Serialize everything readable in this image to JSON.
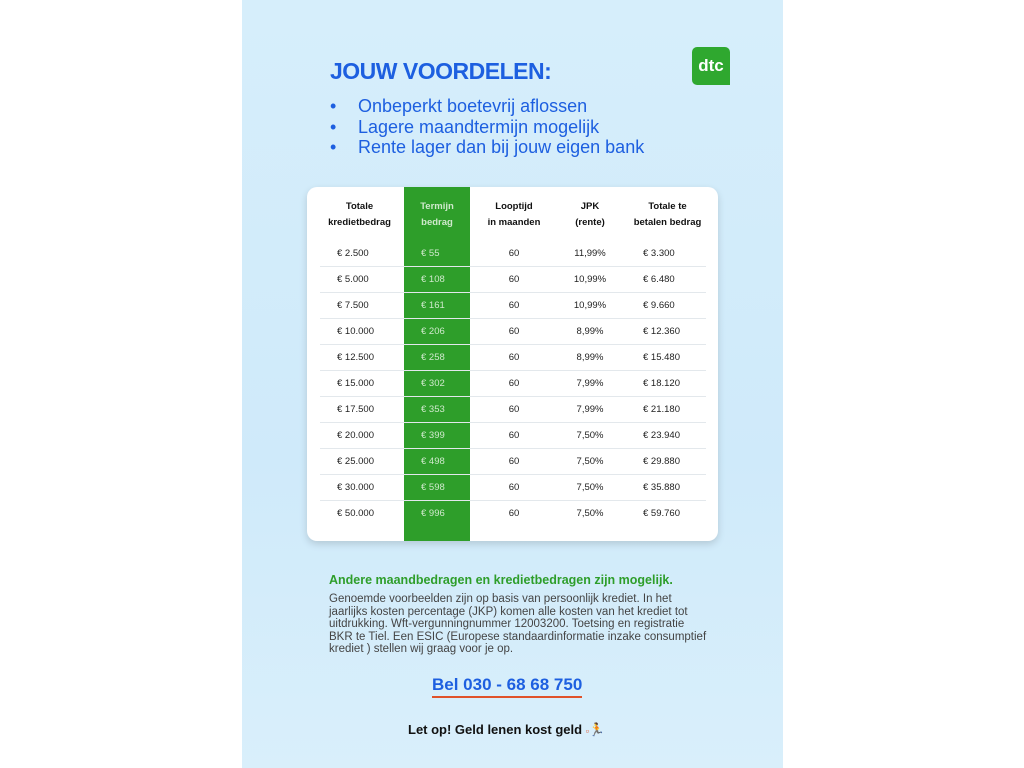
{
  "title": "JOUW VOORDELEN:",
  "logo": "dtc",
  "bullets": [
    "Onbeperkt boetevrij aflossen",
    "Lagere maandtermijn mogelijk",
    "Rente lager dan bij jouw eigen bank"
  ],
  "table": {
    "headers": [
      [
        "Totale",
        "kredietbedrag"
      ],
      [
        "Termijn",
        "bedrag"
      ],
      [
        "Looptijd",
        "in maanden"
      ],
      [
        "JPK",
        "(rente)"
      ],
      [
        "Totale te",
        "betalen bedrag"
      ]
    ],
    "rows": [
      [
        "€ 2.500",
        "€ 55",
        "60",
        "11,99%",
        "€ 3.300"
      ],
      [
        "€ 5.000",
        "€ 108",
        "60",
        "10,99%",
        "€ 6.480"
      ],
      [
        "€ 7.500",
        "€ 161",
        "60",
        "10,99%",
        "€ 9.660"
      ],
      [
        "€ 10.000",
        "€ 206",
        "60",
        "8,99%",
        "€ 12.360"
      ],
      [
        "€ 12.500",
        "€ 258",
        "60",
        "8,99%",
        "€ 15.480"
      ],
      [
        "€ 15.000",
        "€ 302",
        "60",
        "7,99%",
        "€ 18.120"
      ],
      [
        "€ 17.500",
        "€ 353",
        "60",
        "7,99%",
        "€ 21.180"
      ],
      [
        "€ 20.000",
        "€ 399",
        "60",
        "7,50%",
        "€ 23.940"
      ],
      [
        "€ 25.000",
        "€ 498",
        "60",
        "7,50%",
        "€ 29.880"
      ],
      [
        "€ 30.000",
        "€ 598",
        "60",
        "7,50%",
        "€ 35.880"
      ],
      [
        "€ 50.000",
        "€ 996",
        "60",
        "7,50%",
        "€ 59.760"
      ]
    ]
  },
  "note_heading": "Andere maandbedragen en kredietbedragen zijn mogelijk.",
  "note_text": "Genoemde voorbeelden zijn op basis van persoonlijk krediet. In het jaarlijks kosten percentage (JKP) komen alle kosten van het krediet tot uitdrukking. Wft-vergunningnummer 12003200. Toetsing en registratie BKR te Tiel. Een ESIC (Europese standaardinformatie inzake consumptief krediet ) stellen wij graag voor je op.",
  "phone": "Bel 030 - 68 68 750",
  "warning": "Let op! Geld lenen kost geld",
  "colors": {
    "blue": "#1d5fe0",
    "green": "#2e9e2a",
    "accent": "#e0522a"
  }
}
